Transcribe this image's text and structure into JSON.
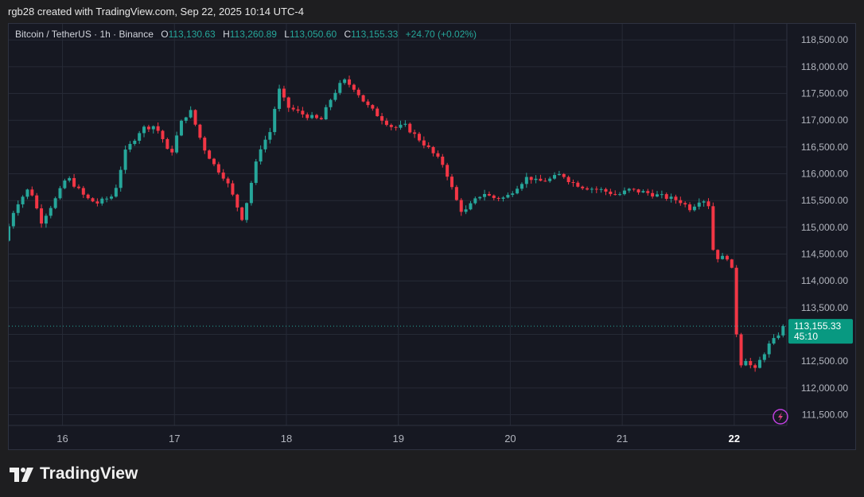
{
  "header": {
    "caption": "rgb28 created with TradingView.com, Sep 22, 2025 10:14 UTC-4"
  },
  "legend": {
    "symbol": "Bitcoin / TetherUS · 1h · Binance",
    "open_label": "O",
    "open": "113,130.63",
    "high_label": "H",
    "high": "113,260.89",
    "low_label": "L",
    "low": "113,050.60",
    "close_label": "C",
    "close": "113,155.33",
    "change": "+24.70 (+0.02%)"
  },
  "price_tag": {
    "price": "113,155.33",
    "countdown": "45:10"
  },
  "footer": {
    "brand": "TradingView"
  },
  "colors": {
    "up": "#26a69a",
    "down": "#f23645",
    "background": "#161822",
    "grid": "#262a36",
    "axis_text": "#b2b5be"
  },
  "chart_data": {
    "type": "candlestick",
    "interval": "1h",
    "ylim": [
      111300,
      118800
    ],
    "y_ticks": [
      111500,
      112000,
      112500,
      113000,
      113500,
      114000,
      114500,
      115000,
      115500,
      116000,
      116500,
      117000,
      117500,
      118000,
      118500
    ],
    "y_tick_labels": [
      "111,500.00",
      "112,000.00",
      "112,500.00",
      "113,000.00",
      "113,500.00",
      "114,000.00",
      "114,500.00",
      "115,000.00",
      "115,500.00",
      "116,000.00",
      "116,500.00",
      "117,000.00",
      "117,500.00",
      "118,000.00",
      "118,500.00"
    ],
    "x_ticks": [
      16,
      17,
      18,
      19,
      20,
      21,
      22
    ],
    "x_tick_labels": [
      "16",
      "17",
      "18",
      "19",
      "20",
      "21",
      "22"
    ],
    "x_tick_bold": [
      false,
      false,
      false,
      false,
      false,
      false,
      true
    ],
    "x_range_days": [
      15.52,
      22.47
    ],
    "last_price": 113155.33,
    "grid": true,
    "path": [
      [
        15.52,
        114750
      ],
      [
        15.62,
        115400
      ],
      [
        15.75,
        115750
      ],
      [
        15.85,
        115100
      ],
      [
        16.0,
        115600
      ],
      [
        16.08,
        115950
      ],
      [
        16.25,
        115550
      ],
      [
        16.35,
        115450
      ],
      [
        16.5,
        115600
      ],
      [
        16.6,
        116400
      ],
      [
        16.75,
        116850
      ],
      [
        16.87,
        116900
      ],
      [
        16.95,
        116600
      ],
      [
        17.0,
        116300
      ],
      [
        17.1,
        116950
      ],
      [
        17.18,
        117200
      ],
      [
        17.3,
        116500
      ],
      [
        17.4,
        116150
      ],
      [
        17.5,
        115900
      ],
      [
        17.6,
        115400
      ],
      [
        17.65,
        115150
      ],
      [
        17.73,
        115850
      ],
      [
        17.8,
        116450
      ],
      [
        17.9,
        116800
      ],
      [
        17.97,
        117600
      ],
      [
        18.05,
        117250
      ],
      [
        18.2,
        117100
      ],
      [
        18.35,
        117000
      ],
      [
        18.45,
        117450
      ],
      [
        18.55,
        117750
      ],
      [
        18.65,
        117600
      ],
      [
        18.75,
        117300
      ],
      [
        18.88,
        117050
      ],
      [
        19.0,
        116850
      ],
      [
        19.1,
        116900
      ],
      [
        19.2,
        116700
      ],
      [
        19.3,
        116500
      ],
      [
        19.45,
        116150
      ],
      [
        19.5,
        115850
      ],
      [
        19.55,
        115550
      ],
      [
        19.62,
        115250
      ],
      [
        19.7,
        115450
      ],
      [
        19.8,
        115650
      ],
      [
        19.88,
        115550
      ],
      [
        20.0,
        115550
      ],
      [
        20.12,
        115800
      ],
      [
        20.2,
        115950
      ],
      [
        20.28,
        115850
      ],
      [
        20.4,
        115900
      ],
      [
        20.5,
        116000
      ],
      [
        20.58,
        115850
      ],
      [
        20.7,
        115750
      ],
      [
        20.85,
        115700
      ],
      [
        21.0,
        115600
      ],
      [
        21.1,
        115700
      ],
      [
        21.25,
        115650
      ],
      [
        21.35,
        115600
      ],
      [
        21.45,
        115550
      ],
      [
        21.55,
        115500
      ],
      [
        21.65,
        115350
      ],
      [
        21.75,
        115550
      ],
      [
        21.82,
        115400
      ],
      [
        21.85,
        114600
      ],
      [
        21.92,
        114350
      ],
      [
        21.96,
        114550
      ],
      [
        22.02,
        114200
      ],
      [
        22.06,
        113050
      ],
      [
        22.1,
        112450
      ],
      [
        22.15,
        112550
      ],
      [
        22.22,
        112300
      ],
      [
        22.28,
        112550
      ],
      [
        22.35,
        112800
      ],
      [
        22.4,
        112900
      ],
      [
        22.45,
        113050
      ],
      [
        22.47,
        113155
      ]
    ]
  }
}
